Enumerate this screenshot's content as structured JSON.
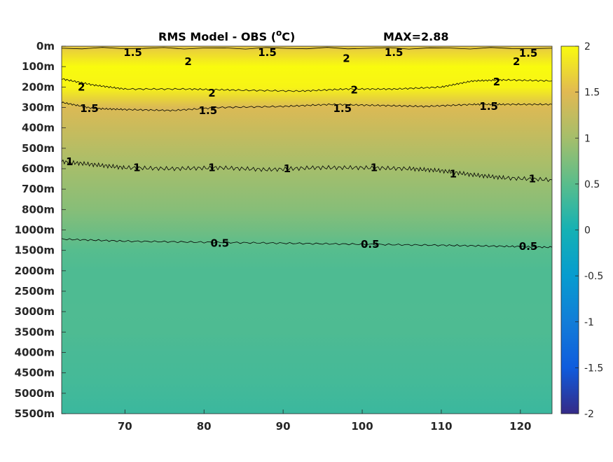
{
  "chart_data": {
    "type": "heatmap",
    "title": "RMS Model - OBS (°C)",
    "title_parts": {
      "main": "RMS Model - OBS (",
      "superscript": "o",
      "unit": "C)"
    },
    "max_label": "MAX=2.88",
    "xlim": [
      62,
      124
    ],
    "x_ticks": [
      "70",
      "80",
      "90",
      "100",
      "110",
      "120"
    ],
    "x_tick_values": [
      70,
      80,
      90,
      100,
      110,
      120
    ],
    "y_ticks": [
      "0m",
      "100m",
      "200m",
      "300m",
      "400m",
      "500m",
      "600m",
      "700m",
      "800m",
      "1000m",
      "1500m",
      "2000m",
      "2500m",
      "3000m",
      "3500m",
      "4000m",
      "4500m",
      "5000m",
      "5500m"
    ],
    "colorbar": {
      "range": [
        -2,
        2
      ],
      "ticks": [
        "2",
        "1.5",
        "1",
        "0.5",
        "0",
        "-0.5",
        "-1",
        "-1.5",
        "-2"
      ],
      "tick_values": [
        2,
        1.5,
        1,
        0.5,
        0,
        -0.5,
        -1,
        -1.5,
        -2
      ]
    },
    "depth_profile": [
      {
        "depth": "0m",
        "value": 1.6
      },
      {
        "depth": "100m",
        "value": 2.0
      },
      {
        "depth": "200m",
        "value": 1.95
      },
      {
        "depth": "300m",
        "value": 1.45
      },
      {
        "depth": "400m",
        "value": 1.3
      },
      {
        "depth": "500m",
        "value": 1.15
      },
      {
        "depth": "600m",
        "value": 1.0
      },
      {
        "depth": "700m",
        "value": 0.9
      },
      {
        "depth": "800m",
        "value": 0.8
      },
      {
        "depth": "1000m",
        "value": 0.65
      },
      {
        "depth": "1500m",
        "value": 0.48
      },
      {
        "depth": "2000m",
        "value": 0.42
      },
      {
        "depth": "2500m",
        "value": 0.42
      },
      {
        "depth": "3000m",
        "value": 0.43
      },
      {
        "depth": "3500m",
        "value": 0.42
      },
      {
        "depth": "4000m",
        "value": 0.38
      },
      {
        "depth": "4500m",
        "value": 0.36
      },
      {
        "depth": "5000m",
        "value": 0.32
      },
      {
        "depth": "5500m",
        "value": 0.28
      }
    ],
    "contour_labels": [
      {
        "text": "1.5",
        "x": 71,
        "depth_index": 0.3
      },
      {
        "text": "1.5",
        "x": 88,
        "depth_index": 0.3
      },
      {
        "text": "1.5",
        "x": 104,
        "depth_index": 0.3
      },
      {
        "text": "1.5",
        "x": 121,
        "depth_index": 0.35
      },
      {
        "text": "2",
        "x": 78,
        "depth_index": 0.75
      },
      {
        "text": "2",
        "x": 98,
        "depth_index": 0.6
      },
      {
        "text": "2",
        "x": 119.5,
        "depth_index": 0.75
      },
      {
        "text": "2",
        "x": 64.5,
        "depth_index": 2.0
      },
      {
        "text": "2",
        "x": 81,
        "depth_index": 2.3
      },
      {
        "text": "2",
        "x": 99,
        "depth_index": 2.15
      },
      {
        "text": "2",
        "x": 117,
        "depth_index": 1.75
      },
      {
        "text": "1.5",
        "x": 65.5,
        "depth_index": 3.05
      },
      {
        "text": "1.5",
        "x": 80.5,
        "depth_index": 3.15
      },
      {
        "text": "1.5",
        "x": 97.5,
        "depth_index": 3.05
      },
      {
        "text": "1.5",
        "x": 116,
        "depth_index": 2.95
      },
      {
        "text": "1",
        "x": 63,
        "depth_index": 5.65
      },
      {
        "text": "1",
        "x": 71.5,
        "depth_index": 5.95
      },
      {
        "text": "1",
        "x": 81,
        "depth_index": 5.95
      },
      {
        "text": "1",
        "x": 90.5,
        "depth_index": 6.0
      },
      {
        "text": "1",
        "x": 101.5,
        "depth_index": 5.95
      },
      {
        "text": "1",
        "x": 111.5,
        "depth_index": 6.25
      },
      {
        "text": "1",
        "x": 121.5,
        "depth_index": 6.5
      },
      {
        "text": "0.5",
        "x": 82,
        "depth_index": 9.65
      },
      {
        "text": "0.5",
        "x": 101,
        "depth_index": 9.7
      },
      {
        "text": "0.5",
        "x": 121,
        "depth_index": 9.8
      }
    ],
    "contour_lines": [
      {
        "level": 1.5,
        "points": [
          [
            62,
            0.1
          ],
          [
            124,
            0.1
          ]
        ]
      },
      {
        "level": 2,
        "points": [
          [
            62,
            1.6
          ],
          [
            66,
            1.9
          ],
          [
            70,
            2.1
          ],
          [
            78,
            2.1
          ],
          [
            84,
            2.15
          ],
          [
            92,
            2.2
          ],
          [
            98,
            2.1
          ],
          [
            104,
            2.1
          ],
          [
            110,
            2.0
          ],
          [
            114,
            1.7
          ],
          [
            118,
            1.65
          ],
          [
            124,
            1.7
          ]
        ]
      },
      {
        "level": 1.5,
        "points": [
          [
            62,
            2.75
          ],
          [
            66,
            3.05
          ],
          [
            70,
            3.1
          ],
          [
            76,
            3.15
          ],
          [
            82,
            3.0
          ],
          [
            90,
            2.95
          ],
          [
            96,
            2.85
          ],
          [
            102,
            2.9
          ],
          [
            108,
            2.95
          ],
          [
            114,
            2.85
          ],
          [
            118,
            2.85
          ],
          [
            124,
            2.85
          ]
        ]
      },
      {
        "level": 1,
        "points": [
          [
            62,
            5.65
          ],
          [
            66,
            5.8
          ],
          [
            70,
            5.95
          ],
          [
            76,
            6.0
          ],
          [
            82,
            5.95
          ],
          [
            88,
            6.05
          ],
          [
            94,
            5.95
          ],
          [
            100,
            5.95
          ],
          [
            106,
            6.0
          ],
          [
            110,
            6.1
          ],
          [
            114,
            6.3
          ],
          [
            118,
            6.45
          ],
          [
            124,
            6.55
          ]
        ]
      },
      {
        "level": 0.5,
        "points": [
          [
            62,
            9.45
          ],
          [
            70,
            9.55
          ],
          [
            80,
            9.6
          ],
          [
            90,
            9.65
          ],
          [
            100,
            9.7
          ],
          [
            110,
            9.75
          ],
          [
            118,
            9.8
          ],
          [
            124,
            9.85
          ]
        ]
      }
    ]
  }
}
